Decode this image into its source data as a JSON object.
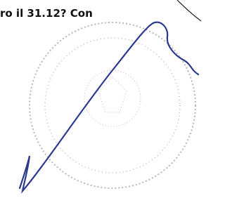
{
  "document": {
    "text": "ro il 31.12? Con"
  }
}
